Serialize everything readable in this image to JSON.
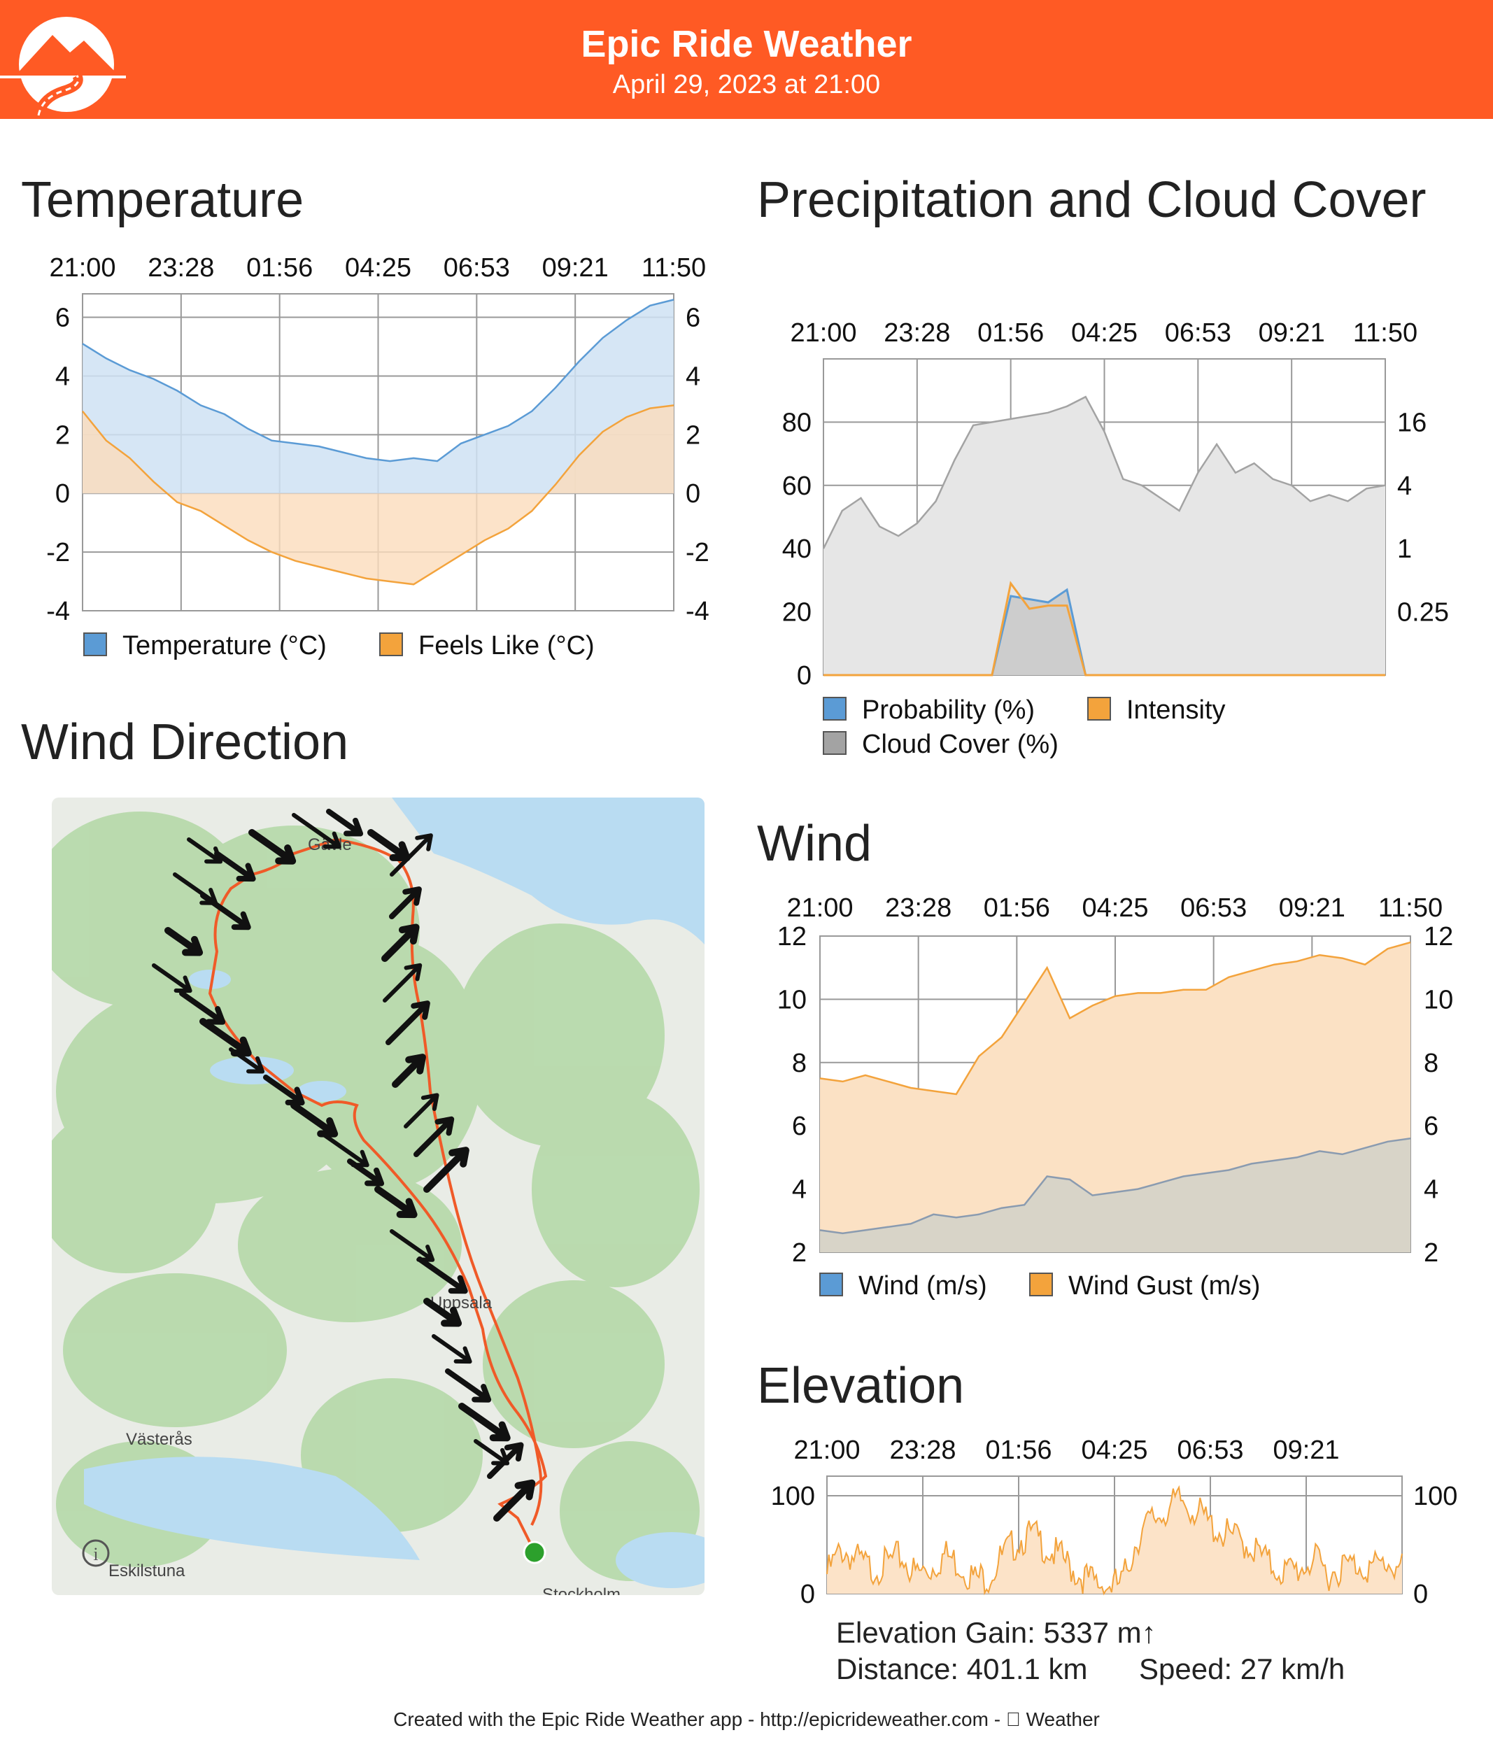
{
  "header": {
    "title": "Epic Ride Weather",
    "subtitle": "April 29, 2023 at 21:00"
  },
  "footer": {
    "text": "Created with the Epic Ride Weather app - http://epicrideweather.com -  Weather"
  },
  "sections": {
    "temperature": "Temperature",
    "precip": "Precipitation and Cloud Cover",
    "wind_direction": "Wind Direction",
    "wind": "Wind",
    "elevation": "Elevation"
  },
  "map": {
    "labels": [
      "Gävle",
      "Uppsala",
      "Västerås",
      "Eskilstuna",
      "Stockholm"
    ],
    "info_icon": "info-icon",
    "colors": {
      "land": "#ececec",
      "forest": "#b5d9a8",
      "water": "#b9dcf2",
      "route": "#f05a28",
      "start": "#2ca02c",
      "arrow": "#111111"
    }
  },
  "elevation_stats": {
    "gain": "Elevation Gain: 5337 m↑",
    "distance": "Distance: 401.1 km",
    "speed": "Speed: 27 km/h"
  },
  "chart_data": [
    {
      "id": "temperature",
      "type": "area",
      "time_labels": [
        "21:00",
        "23:28",
        "01:56",
        "04:25",
        "06:53",
        "09:21",
        "11:50"
      ],
      "ylim": [
        -4,
        6.8
      ],
      "y_ticks": [
        -4,
        -2,
        0,
        2,
        4,
        6
      ],
      "series": [
        {
          "name": "Temperature (°C)",
          "color": "#5b9bd5",
          "fill": "#cfe2f3",
          "values": [
            5.1,
            4.6,
            4.2,
            3.9,
            3.5,
            3.0,
            2.7,
            2.2,
            1.8,
            1.7,
            1.6,
            1.4,
            1.2,
            1.1,
            1.2,
            1.1,
            1.7,
            2.0,
            2.3,
            2.8,
            3.6,
            4.5,
            5.3,
            5.9,
            6.4,
            6.6
          ]
        },
        {
          "name": "Feels Like (°C)",
          "color": "#f3a33c",
          "fill": "#fbdcbc",
          "values": [
            2.8,
            1.8,
            1.2,
            0.4,
            -0.3,
            -0.6,
            -1.1,
            -1.6,
            -2.0,
            -2.3,
            -2.5,
            -2.7,
            -2.9,
            -3.0,
            -3.1,
            -2.6,
            -2.1,
            -1.6,
            -1.2,
            -0.6,
            0.3,
            1.3,
            2.1,
            2.6,
            2.9,
            3.0
          ]
        }
      ]
    },
    {
      "id": "precipitation",
      "type": "area",
      "time_labels": [
        "21:00",
        "23:28",
        "01:56",
        "04:25",
        "06:53",
        "09:21",
        "11:50"
      ],
      "ylim": [
        0,
        100
      ],
      "y_ticks_left": [
        0,
        20,
        40,
        60,
        80
      ],
      "y_ticks_right": [
        "0.25",
        "1",
        "4",
        "16"
      ],
      "series": [
        {
          "name": "Probability (%)",
          "color": "#5b9bd5",
          "values": [
            0,
            0,
            0,
            0,
            0,
            0,
            0,
            0,
            0,
            0,
            25,
            24,
            23,
            27,
            0,
            0,
            0,
            0,
            0,
            0,
            0,
            0,
            0,
            0,
            0,
            0,
            0,
            0,
            0,
            0,
            0
          ]
        },
        {
          "name": "Intensity",
          "color": "#f3a33c",
          "values": [
            0,
            0,
            0,
            0,
            0,
            0,
            0,
            0,
            0,
            0,
            29,
            21,
            22,
            22,
            0,
            0,
            0,
            0,
            0,
            0,
            0,
            0,
            0,
            0,
            0,
            0,
            0,
            0,
            0,
            0,
            0
          ]
        },
        {
          "name": "Cloud Cover (%)",
          "color": "#a3a3a3",
          "fill": "#e6e6e6",
          "values": [
            40,
            52,
            56,
            47,
            44,
            48,
            55,
            68,
            79,
            80,
            81,
            82,
            83,
            85,
            88,
            77,
            62,
            60,
            56,
            52,
            64,
            73,
            64,
            67,
            62,
            60,
            55,
            57,
            55,
            59,
            60
          ]
        }
      ]
    },
    {
      "id": "wind",
      "type": "area",
      "time_labels": [
        "21:00",
        "23:28",
        "01:56",
        "04:25",
        "06:53",
        "09:21",
        "11:50"
      ],
      "ylim": [
        2,
        12
      ],
      "y_ticks": [
        2,
        4,
        6,
        8,
        10,
        12
      ],
      "series": [
        {
          "name": "Wind (m/s)",
          "color": "#5b9bd5",
          "values": [
            2.7,
            2.6,
            2.7,
            2.8,
            2.9,
            3.2,
            3.1,
            3.2,
            3.4,
            3.5,
            4.4,
            4.3,
            3.8,
            3.9,
            4.0,
            4.2,
            4.4,
            4.5,
            4.6,
            4.8,
            4.9,
            5.0,
            5.2,
            5.1,
            5.3,
            5.5,
            5.6
          ]
        },
        {
          "name": "Wind Gust (m/s)",
          "color": "#f3a33c",
          "fill": "#fbe1c4",
          "values": [
            7.5,
            7.4,
            7.6,
            7.4,
            7.2,
            7.1,
            7.0,
            8.2,
            8.8,
            9.9,
            11.0,
            9.4,
            9.8,
            10.1,
            10.2,
            10.2,
            10.3,
            10.3,
            10.7,
            10.9,
            11.1,
            11.2,
            11.4,
            11.3,
            11.1,
            11.6,
            11.8
          ]
        }
      ]
    },
    {
      "id": "elevation",
      "type": "area",
      "time_labels": [
        "21:00",
        "23:28",
        "01:56",
        "04:25",
        "06:53",
        "09:21"
      ],
      "ylim": [
        0,
        120
      ],
      "y_ticks": [
        0,
        100
      ],
      "series": [
        {
          "name": "Elevation",
          "color": "#f3a33c",
          "fill": "#fce3c8",
          "values": [
            20,
            45,
            35,
            25,
            30,
            38,
            20,
            25,
            40,
            30,
            15,
            18,
            40,
            55,
            60,
            45,
            35,
            20,
            12,
            8,
            10,
            55,
            75,
            85,
            95,
            85,
            70,
            60,
            55,
            45,
            30,
            22,
            25,
            35,
            20,
            28,
            30,
            26,
            32,
            25
          ]
        }
      ]
    }
  ]
}
